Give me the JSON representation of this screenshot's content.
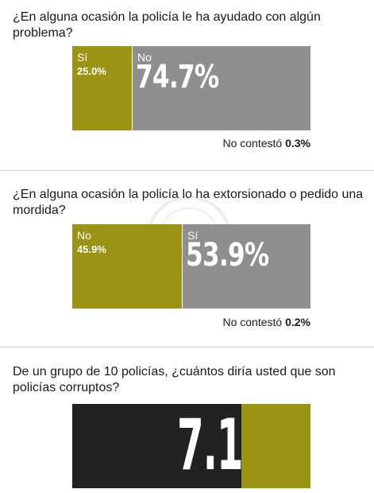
{
  "colors": {
    "gold": "#9b9313",
    "gray": "#8f8f8f",
    "dark": "#222222"
  },
  "q1": {
    "question": "¿En alguna ocasión la policía le ha ayudado con algún problema?",
    "yes_label": "Sí",
    "yes_value": "25.0%",
    "no_label": "No",
    "no_value": "74.7%",
    "no_answer_label": "No contestó",
    "no_answer_value": "0.3%"
  },
  "q2": {
    "question": "¿En alguna ocasión la policía lo ha extorsionado o pedido una mordida?",
    "no_label": "No",
    "no_value": "45.9%",
    "yes_label": "Sí",
    "yes_value": "53.9%",
    "no_answer_label": "No contestó",
    "no_answer_value": "0.2%"
  },
  "q3": {
    "question": "De un grupo de 10 policías, ¿cuántos diría usted que son policías corruptos?",
    "value": "7.1"
  },
  "chart_data": [
    {
      "type": "bar",
      "title": "¿En alguna ocasión la policía le ha ayudado con algún problema?",
      "categories": [
        "Sí",
        "No",
        "No contestó"
      ],
      "values": [
        25.0,
        74.7,
        0.3
      ]
    },
    {
      "type": "bar",
      "title": "¿En alguna ocasión la policía lo ha extorsionado o pedido una mordida?",
      "categories": [
        "No",
        "Sí",
        "No contestó"
      ],
      "values": [
        45.9,
        53.9,
        0.2
      ]
    },
    {
      "type": "bar",
      "title": "De un grupo de 10 policías, ¿cuántos diría usted que son policías corruptos?",
      "categories": [
        "corruptos"
      ],
      "values": [
        7.1
      ],
      "ylim": [
        0,
        10
      ]
    }
  ]
}
